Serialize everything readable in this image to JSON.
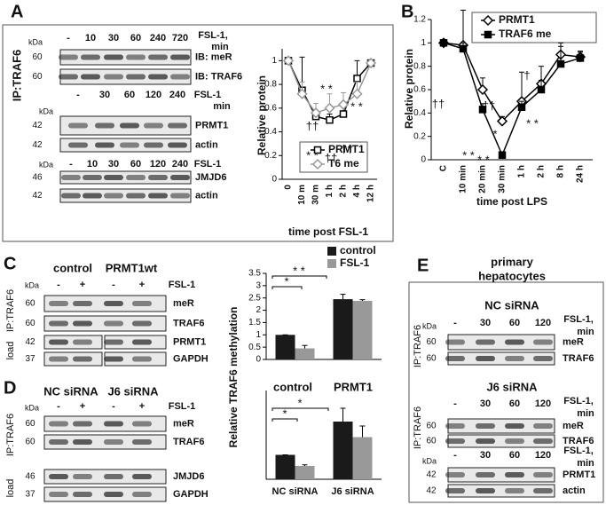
{
  "panels": {
    "A": "A",
    "B": "B",
    "C": "C",
    "D": "D",
    "E": "E"
  },
  "side_labels": {
    "A": "IP:TRAF6",
    "C_ip": "IP:TRAF6",
    "C_load": "load",
    "D_ip": "IP:TRAF6",
    "D_load": "load",
    "E_nc": "IP:TRAF6",
    "E_j6": "IP:TRAF6"
  },
  "e_title": [
    "primary",
    "hepatocytes"
  ],
  "blots": {
    "A1": {
      "kda_title": "kDa",
      "lanes": [
        "-",
        "10",
        "30",
        "60",
        "240",
        "720"
      ],
      "treatment": [
        "FSL-1,",
        "min"
      ],
      "rows": [
        {
          "kda": 60,
          "label": "IB: meR"
        },
        {
          "kda": 60,
          "label": "IB: TRAF6"
        }
      ]
    },
    "A2": {
      "kda_title": "kDa",
      "lanes": [
        "-",
        "30",
        "60",
        "120",
        "240"
      ],
      "treatment": [
        "FSL-1",
        "min"
      ],
      "rows": [
        {
          "kda": 42,
          "label": "PRMT1"
        },
        {
          "kda": 42,
          "label": "actin"
        }
      ]
    },
    "A3": {
      "kda_title": "kDa",
      "lanes": [
        "-",
        "10",
        "30",
        "60",
        "120",
        "240"
      ],
      "treatment": [
        "FSL-1"
      ],
      "rows": [
        {
          "kda": 46,
          "label": "JMJD6"
        },
        {
          "kda": 42,
          "label": "actin"
        }
      ]
    },
    "C": {
      "headers": [
        "control",
        "PRMT1wt"
      ],
      "kda_title": "kDa",
      "lanes": [
        "-",
        "+",
        "-",
        "+"
      ],
      "treatment": [
        "FSL-1"
      ],
      "rows": [
        {
          "kda": 60,
          "label": "meR"
        },
        {
          "kda": 60,
          "label": "TRAF6"
        },
        {
          "kda": 42,
          "label": "PRMT1"
        },
        {
          "kda": 37,
          "label": "GAPDH"
        }
      ]
    },
    "D": {
      "headers": [
        "NC siRNA",
        "J6 siRNA"
      ],
      "kda_title": "kDa",
      "lanes": [
        "-",
        "+",
        "-",
        "+"
      ],
      "treatment": [
        "FSL-1"
      ],
      "rows": [
        {
          "kda": 60,
          "label": "meR"
        },
        {
          "kda": 60,
          "label": "TRAF6"
        },
        {
          "kda": 46,
          "label": "JMJD6"
        },
        {
          "kda": 37,
          "label": "GAPDH"
        }
      ]
    },
    "E1": {
      "headers": [
        "NC siRNA"
      ],
      "kda_title": "kDa",
      "lanes": [
        "-",
        "30",
        "60",
        "120"
      ],
      "treatment": [
        "FSL-1,",
        "min"
      ],
      "rows": [
        {
          "kda": 60,
          "label": "meR"
        },
        {
          "kda": 60,
          "label": "TRAF6"
        }
      ]
    },
    "E2": {
      "headers": [
        "J6 siRNA"
      ],
      "lanes": [
        "-",
        "30",
        "60",
        "120"
      ],
      "treatment": [
        "FSL-1,",
        "min"
      ],
      "rows": [
        {
          "kda": 60,
          "label": "meR"
        },
        {
          "kda": 60,
          "label": "TRAF6"
        }
      ]
    },
    "E3": {
      "kda_title": "kDa",
      "lanes": [
        "-",
        "30",
        "60",
        "120"
      ],
      "treatment": [
        "FSL-1,",
        "min"
      ],
      "rows": [
        {
          "kda": 42,
          "label": "PRMT1"
        },
        {
          "kda": 42,
          "label": "actin"
        }
      ]
    }
  },
  "chart_data": [
    {
      "type": "line",
      "ylabel": "Relative protein",
      "xlabel": "time post FSL-1",
      "categories": [
        "0",
        "10 m",
        "30 m",
        "1 h",
        "2 h",
        "4 h",
        "12 h"
      ],
      "ylim": [
        0,
        1.1
      ],
      "yticks": [
        0,
        0.2,
        0.4,
        0.6,
        0.8,
        1
      ],
      "series": [
        {
          "name": "PRMT1",
          "color": "#000000",
          "marker": "square",
          "marker_fill": "#ffffff",
          "values": [
            1,
            0.75,
            0.53,
            0.5,
            0.55,
            0.85,
            0.98
          ],
          "errors": [
            0,
            0.28,
            0.05,
            0.05,
            0.1,
            0.15,
            0
          ]
        },
        {
          "name": "T6 me",
          "color": "#999999",
          "marker": "diamond",
          "marker_fill": "#ffffff",
          "values": [
            1,
            0.72,
            0.56,
            0.6,
            0.63,
            0.72,
            0.98
          ],
          "errors": [
            0,
            0.1,
            0.08,
            0.12,
            0.1,
            0.1,
            0
          ]
        }
      ],
      "annotations": [
        "††",
        "* *",
        "* *",
        "††",
        "††",
        "* *"
      ]
    },
    {
      "type": "line",
      "ylabel": "Relative protein",
      "xlabel": "time post LPS",
      "categories": [
        "C",
        "10 min",
        "20 min",
        "30 min",
        "1 h",
        "2 h",
        "8 h",
        "24 h"
      ],
      "ylim": [
        0,
        1.2
      ],
      "yticks": [
        0,
        0.2,
        0.4,
        0.6,
        0.8,
        1,
        1.2
      ],
      "series": [
        {
          "name": "PRMT1",
          "color": "#000000",
          "marker": "diamond",
          "marker_fill": "#ffffff",
          "values": [
            1,
            0.98,
            0.6,
            0.33,
            0.5,
            0.65,
            0.9,
            0.88
          ],
          "errors": [
            0,
            0.3,
            0.1,
            0.04,
            0.25,
            0.15,
            0.1,
            0.05
          ]
        },
        {
          "name": "TRAF6 me",
          "color": "#000000",
          "marker": "square",
          "marker_fill": "#000000",
          "values": [
            1,
            0.95,
            0.43,
            0.04,
            0.45,
            0.6,
            0.82,
            0.87
          ],
          "errors": [
            0,
            0.05,
            0.05,
            0.02,
            0.05,
            0.08,
            0.15,
            0.05
          ]
        }
      ],
      "annotations": [
        "††",
        "* *",
        "††",
        "*",
        "* *",
        "†",
        "* *"
      ]
    },
    {
      "type": "bar",
      "ylabel": "Relative TRAF6 methylation",
      "categories": [
        null,
        null
      ],
      "ylim": [
        0,
        3.5
      ],
      "yticks": [
        0,
        0.5,
        1,
        1.5,
        2,
        2.5,
        3,
        3.5
      ],
      "series": [
        {
          "name": "control",
          "color": "#1a1a1a",
          "values": [
            1,
            2.45
          ],
          "errors": [
            0,
            0.2
          ]
        },
        {
          "name": "FSL-1",
          "color": "#999999",
          "values": [
            0.45,
            2.38
          ],
          "errors": [
            0.12,
            0.05
          ]
        }
      ],
      "annotations": [
        "*",
        "* *"
      ]
    },
    {
      "type": "bar",
      "categories": [
        "NC siRNA",
        "J6 siRNA"
      ],
      "group_labels": [
        "control",
        "PRMT1"
      ],
      "ylim": [
        0,
        4
      ],
      "series": [
        {
          "color": "#1a1a1a",
          "values": [
            1.1,
            2.6
          ],
          "errors": [
            0,
            0.6
          ]
        },
        {
          "color": "#999999",
          "values": [
            0.6,
            1.9
          ],
          "errors": [
            0.05,
            0.5
          ]
        }
      ],
      "annotations": [
        "*",
        "*"
      ]
    }
  ]
}
